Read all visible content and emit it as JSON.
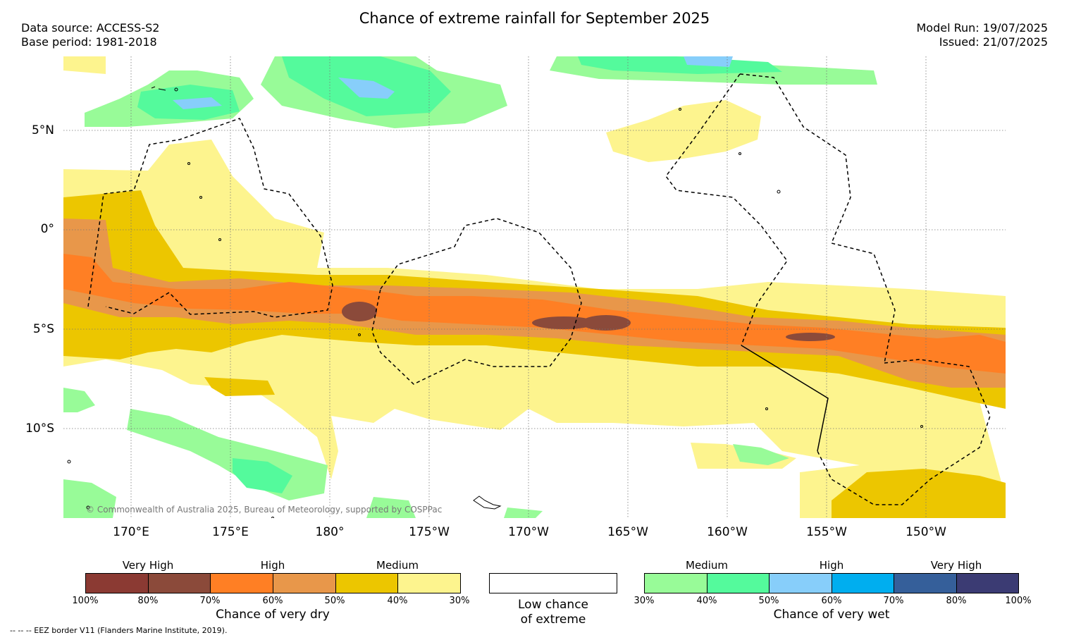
{
  "header": {
    "title": "Chance of extreme rainfall for September 2025",
    "data_source": "Data source: ACCESS-S2",
    "base_period": "Base period: 1981-2018",
    "model_run": "Model Run: 19/07/2025",
    "issued": "Issued: 21/07/2025"
  },
  "map": {
    "lat_labels": [
      "5°N",
      "0°",
      "5°S",
      "10°S"
    ],
    "lon_labels": [
      "170°E",
      "175°E",
      "180°",
      "175°W",
      "170°W",
      "165°W",
      "160°W",
      "155°W",
      "150°W"
    ],
    "copyright": "© Commonwealth of Australia 2025, Bureau of Meteorology, supported by COSPPac"
  },
  "legend": {
    "dry": {
      "caption": "Chance of very dry",
      "categories": [
        "Very High",
        "High",
        "Medium"
      ],
      "ticks": [
        "100%",
        "80%",
        "70%",
        "60%",
        "50%",
        "40%",
        "30%"
      ],
      "colors": [
        "#8b3a33",
        "#8b4a3a",
        "#ff7f24",
        "#e8974a",
        "#ecc600",
        "#fdf48e"
      ]
    },
    "neutral": {
      "caption_line1": "Low chance",
      "caption_line2": "of extreme",
      "color": "#ffffff"
    },
    "wet": {
      "caption": "Chance of very wet",
      "categories": [
        "Medium",
        "High",
        "Very High"
      ],
      "ticks": [
        "30%",
        "40%",
        "50%",
        "60%",
        "70%",
        "80%",
        "100%"
      ],
      "colors": [
        "#98fb98",
        "#54fa9c",
        "#87cefa",
        "#00aeef",
        "#355f9a",
        "#3b3b73"
      ]
    }
  },
  "footer": {
    "eez_note": "--  --  -- EEZ border V11 (Flanders Marine Institute, 2019)."
  }
}
